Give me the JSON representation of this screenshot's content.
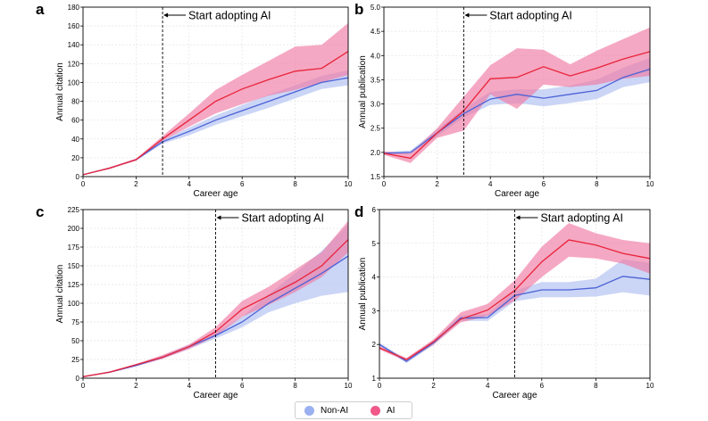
{
  "legend": {
    "non_ai_label": "Non-AI",
    "ai_label": "AI",
    "non_ai_color": "#9bb0f0",
    "ai_color": "#f0588a"
  },
  "colors": {
    "ai_line": "#e8233a",
    "ai_band": "#f07aa3",
    "nonai_line": "#4a62d6",
    "nonai_band": "#b9c7f3"
  },
  "chart_data": [
    {
      "panel": "a",
      "type": "line",
      "xlabel": "Career age",
      "ylabel": "Annual citation",
      "xlim": [
        0,
        10
      ],
      "ylim": [
        0,
        180
      ],
      "xticks": [
        0,
        2,
        4,
        6,
        8,
        10
      ],
      "yticks": [
        0,
        20,
        40,
        60,
        80,
        100,
        120,
        140,
        160,
        180
      ],
      "vline_x": 3,
      "annotation": "Start adopting AI",
      "x": [
        0,
        1,
        2,
        3,
        4,
        5,
        6,
        7,
        8,
        9,
        10
      ],
      "series": [
        {
          "name": "Non-AI",
          "values": [
            2,
            9,
            18,
            37,
            48,
            60,
            70,
            80,
            90,
            100,
            105
          ],
          "lower": [
            2,
            9,
            17,
            35,
            44,
            55,
            64,
            73,
            83,
            93,
            97
          ],
          "upper": [
            2,
            9,
            19,
            39,
            52,
            65,
            76,
            87,
            97,
            107,
            113
          ]
        },
        {
          "name": "AI",
          "values": [
            2,
            9,
            18,
            40,
            60,
            80,
            93,
            103,
            112,
            115,
            133
          ],
          "lower": [
            2,
            8,
            17,
            38,
            53,
            67,
            77,
            86,
            92,
            100,
            108
          ],
          "upper": [
            2,
            10,
            19,
            43,
            67,
            92,
            108,
            123,
            138,
            140,
            163
          ]
        }
      ]
    },
    {
      "panel": "b",
      "type": "line",
      "xlabel": "Career age",
      "ylabel": "Annual publication",
      "xlim": [
        0,
        10
      ],
      "ylim": [
        1.5,
        5.0
      ],
      "xticks": [
        0,
        2,
        4,
        6,
        8,
        10
      ],
      "yticks": [
        1.5,
        2.0,
        2.5,
        3.0,
        3.5,
        4.0,
        4.5,
        5.0
      ],
      "vline_x": 3,
      "annotation": "Start adopting AI",
      "x": [
        0,
        1,
        2,
        3,
        4,
        5,
        6,
        7,
        8,
        9,
        10
      ],
      "series": [
        {
          "name": "Non-AI",
          "values": [
            1.98,
            2.0,
            2.4,
            2.8,
            3.1,
            3.2,
            3.12,
            3.2,
            3.28,
            3.55,
            3.72
          ],
          "lower": [
            1.95,
            1.97,
            2.33,
            2.72,
            2.98,
            3.02,
            2.95,
            3.02,
            3.1,
            3.35,
            3.45
          ],
          "upper": [
            2.01,
            2.04,
            2.47,
            2.9,
            3.25,
            3.3,
            3.3,
            3.38,
            3.5,
            3.75,
            3.95
          ]
        },
        {
          "name": "AI",
          "values": [
            1.98,
            1.88,
            2.4,
            2.86,
            3.52,
            3.55,
            3.77,
            3.58,
            3.74,
            3.93,
            4.08
          ],
          "lower": [
            1.95,
            1.78,
            2.3,
            2.45,
            3.2,
            2.9,
            3.4,
            3.35,
            3.4,
            3.52,
            3.58
          ],
          "upper": [
            2.02,
            1.98,
            2.5,
            3.15,
            3.8,
            4.15,
            4.12,
            3.82,
            4.1,
            4.34,
            4.58
          ]
        }
      ]
    },
    {
      "panel": "c",
      "type": "line",
      "xlabel": "Career age",
      "ylabel": "Annual citation",
      "xlim": [
        0,
        10
      ],
      "ylim": [
        0,
        225
      ],
      "xticks": [
        0,
        2,
        4,
        6,
        8,
        10
      ],
      "yticks": [
        0,
        25,
        50,
        75,
        100,
        125,
        150,
        175,
        200,
        225
      ],
      "vline_x": 5,
      "annotation": "Start adopting AI",
      "x": [
        0,
        1,
        2,
        3,
        4,
        5,
        6,
        7,
        8,
        9,
        10
      ],
      "series": [
        {
          "name": "Non-AI",
          "values": [
            2,
            8,
            17,
            28,
            42,
            57,
            75,
            100,
            120,
            140,
            163
          ],
          "lower": [
            2,
            7,
            16,
            26,
            39,
            53,
            68,
            88,
            100,
            110,
            115
          ],
          "upper": [
            2,
            9,
            18,
            30,
            45,
            61,
            82,
            112,
            140,
            170,
            205
          ]
        },
        {
          "name": "AI",
          "values": [
            2,
            8,
            18,
            28,
            42,
            62,
            92,
            110,
            128,
            150,
            185
          ],
          "lower": [
            2,
            7,
            16,
            26,
            39,
            56,
            82,
            98,
            115,
            135,
            168
          ],
          "upper": [
            2,
            9,
            19,
            31,
            45,
            68,
            103,
            122,
            145,
            168,
            210
          ]
        }
      ]
    },
    {
      "panel": "d",
      "type": "line",
      "xlabel": "Career age",
      "ylabel": "Annual publication",
      "xlim": [
        0,
        10
      ],
      "ylim": [
        1,
        6
      ],
      "xticks": [
        0,
        2,
        4,
        6,
        8,
        10
      ],
      "yticks": [
        1,
        2,
        3,
        4,
        5,
        6
      ],
      "vline_x": 5,
      "annotation": "Start adopting AI",
      "x": [
        0,
        1,
        2,
        3,
        4,
        5,
        6,
        7,
        8,
        9,
        10
      ],
      "series": [
        {
          "name": "Non-AI",
          "values": [
            2.0,
            1.5,
            2.05,
            2.78,
            2.8,
            3.45,
            3.62,
            3.62,
            3.68,
            4.02,
            3.93
          ],
          "lower": [
            1.95,
            1.45,
            1.98,
            2.7,
            2.7,
            3.28,
            3.4,
            3.4,
            3.42,
            3.55,
            3.45
          ],
          "upper": [
            2.05,
            1.55,
            2.12,
            2.86,
            2.9,
            3.6,
            3.85,
            3.85,
            3.95,
            4.52,
            4.42
          ]
        },
        {
          "name": "AI",
          "values": [
            1.9,
            1.55,
            2.08,
            2.75,
            3.02,
            3.6,
            4.45,
            5.1,
            4.95,
            4.7,
            4.55
          ],
          "lower": [
            1.85,
            1.5,
            2.0,
            2.65,
            2.85,
            3.3,
            4.0,
            4.6,
            4.55,
            4.4,
            4.1
          ],
          "upper": [
            1.95,
            1.6,
            2.15,
            2.95,
            3.2,
            3.9,
            4.9,
            5.6,
            5.3,
            5.1,
            5.0
          ]
        }
      ]
    }
  ]
}
